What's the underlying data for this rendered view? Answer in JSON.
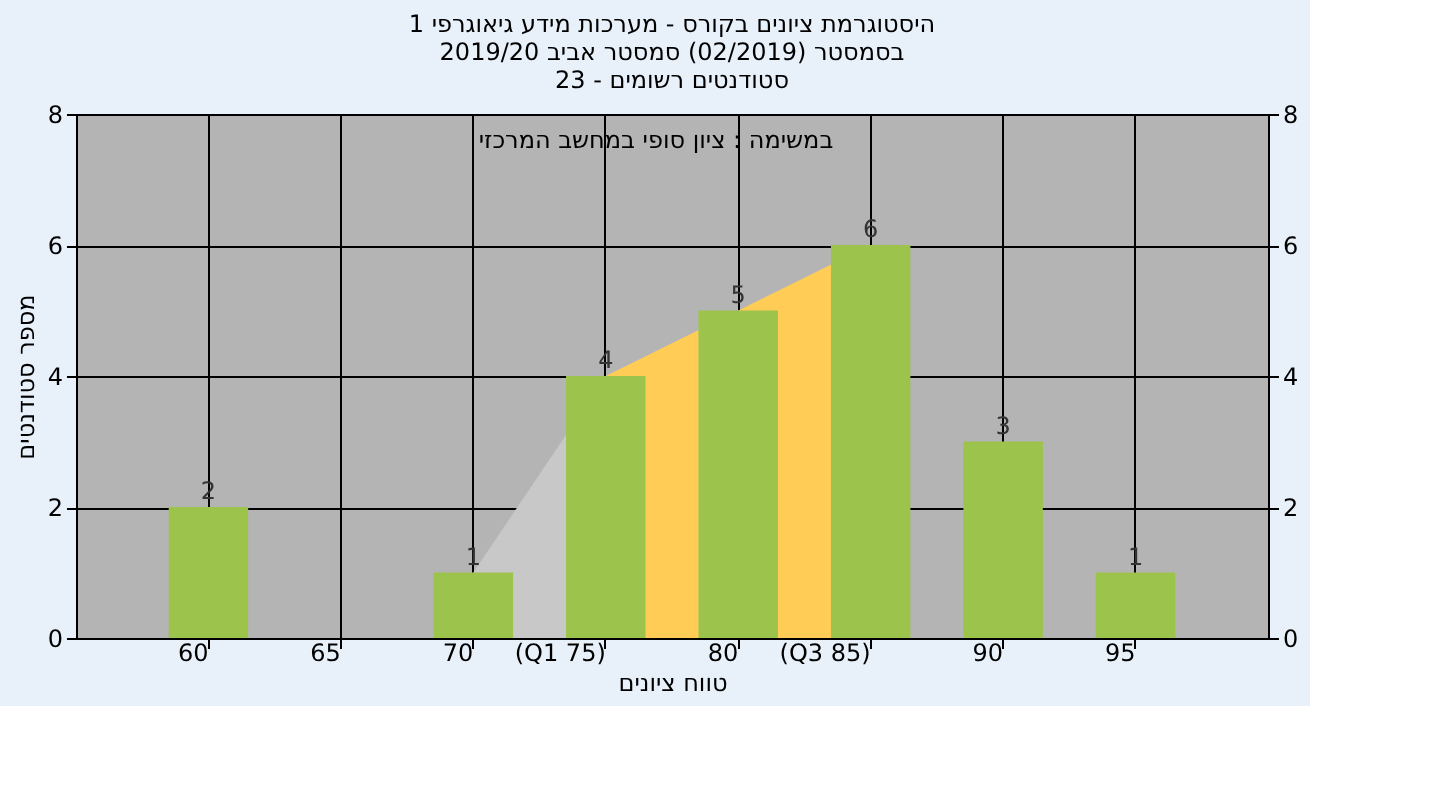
{
  "chart_data": {
    "type": "bar",
    "title": "היסטוגרמת ציונים בקורס - מערכות מידע גיאוגרפי 1\nבסמסטר  (02/2019)  סמסטר אביב 2019/20\nסטודנטים רשומים - 23",
    "xlabel": "טווח ציונים",
    "ylabel": "מספר סטודנטים",
    "annotations": [
      "במשימה : ציון סופי במחשב המרכזי"
    ],
    "categories": [
      "60",
      "65",
      "70",
      "(Q1 75)",
      "80",
      "(Q3 85)",
      "90",
      "95"
    ],
    "series": [
      {
        "type": "area",
        "color": "#c8c8c8",
        "values": [
          null,
          null,
          1,
          4,
          null,
          null,
          null,
          null
        ]
      },
      {
        "type": "area",
        "color": "#ffcc55",
        "values": [
          null,
          null,
          null,
          4,
          5,
          6,
          null,
          null
        ]
      },
      {
        "color": "#9cc44c",
        "values": [
          2,
          0,
          1,
          4,
          5,
          6,
          3,
          1
        ],
        "value_labels": [
          "2",
          null,
          "1",
          "4",
          "5",
          "6",
          "3",
          "1"
        ]
      }
    ],
    "ylim": [
      0,
      8
    ],
    "yticks": [
      0,
      2,
      4,
      6,
      8
    ],
    "y2lim": [
      0,
      8
    ],
    "y2ticks": [
      0,
      2,
      4,
      6,
      8
    ],
    "grid": true
  }
}
